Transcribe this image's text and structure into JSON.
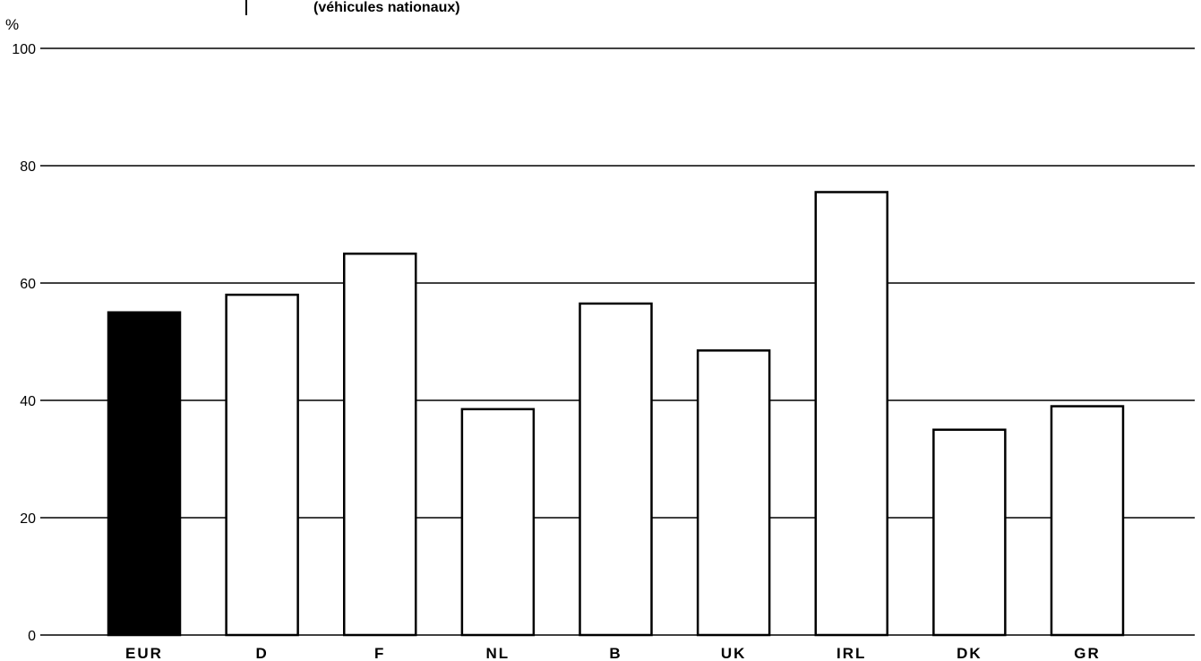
{
  "header": {
    "text": "(véhicules nationaux)"
  },
  "chart_data": {
    "type": "bar",
    "unit_label": "%",
    "categories": [
      "EUR",
      "D",
      "F",
      "NL",
      "B",
      "UK",
      "IRL",
      "DK",
      "GR"
    ],
    "values": [
      55,
      58,
      65,
      38.5,
      56.5,
      48.5,
      75.5,
      35,
      39
    ],
    "highlight_category": "EUR",
    "ylim": [
      0,
      100
    ],
    "yticks": [
      0,
      20,
      40,
      60,
      80,
      100
    ],
    "grid": true,
    "colors": {
      "highlight": "#000000",
      "bar_fill": "#ffffff",
      "stroke": "#000000"
    }
  }
}
